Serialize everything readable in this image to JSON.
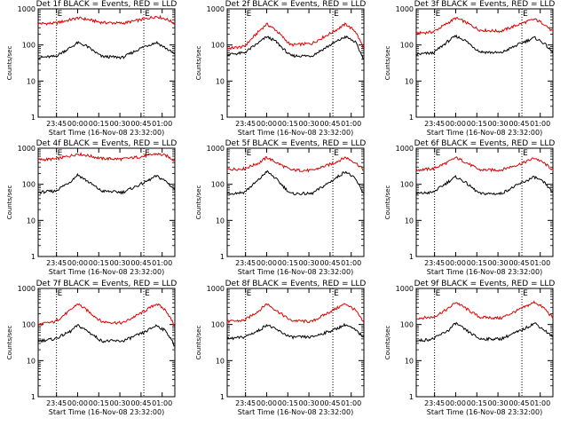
{
  "colors": {
    "events": "#000000",
    "lld": "#e00000",
    "axis": "#000000"
  },
  "shared": {
    "xlabel": "Start Time (16-Nov-08 23:32:00)",
    "ylabel": "Counts/sec",
    "x_tick_labels": [
      "23:45",
      "00:00",
      "00:15",
      "00:30",
      "00:45",
      "01:00"
    ],
    "y_tick_labels": [
      "1",
      "10",
      "100",
      "1000"
    ],
    "marker_label": "E",
    "y_scale": "log",
    "xlim_minutes": [
      0,
      97
    ],
    "ylim": [
      1,
      1000
    ],
    "x_start_time": "23:32",
    "markers_time": [
      "23:45",
      "00:47"
    ]
  },
  "chart_data": [
    {
      "type": "line",
      "title": "Det 1f BLACK = Events, RED = LLD",
      "series": [
        {
          "values_at": [
            0,
            12,
            23,
            28,
            34,
            45,
            60,
            75,
            84,
            91,
            97
          ],
          "events": [
            45,
            48,
            85,
            115,
            95,
            48,
            45,
            90,
            118,
            80,
            55
          ],
          "lld": [
            390,
            400,
            500,
            560,
            520,
            420,
            400,
            520,
            620,
            520,
            400
          ]
        }
      ]
    },
    {
      "type": "line",
      "title": "Det 2f BLACK = Events, RED = LLD",
      "series": [
        {
          "values_at": [
            0,
            12,
            23,
            28,
            34,
            45,
            60,
            75,
            84,
            91,
            97
          ],
          "events": [
            55,
            60,
            120,
            170,
            130,
            50,
            50,
            110,
            170,
            120,
            40
          ],
          "lld": [
            80,
            90,
            250,
            380,
            270,
            100,
            110,
            230,
            380,
            240,
            80
          ]
        }
      ]
    },
    {
      "type": "line",
      "title": "Det 3f BLACK = Events, RED = LLD",
      "series": [
        {
          "values_at": [
            0,
            12,
            23,
            28,
            34,
            45,
            60,
            75,
            84,
            91,
            97
          ],
          "events": [
            55,
            60,
            130,
            175,
            140,
            65,
            60,
            115,
            160,
            110,
            60
          ],
          "lld": [
            210,
            230,
            420,
            560,
            450,
            260,
            240,
            400,
            520,
            380,
            230
          ]
        }
      ]
    },
    {
      "type": "line",
      "title": "Det 4f BLACK = Events, RED = LLD",
      "series": [
        {
          "values_at": [
            0,
            12,
            23,
            28,
            34,
            45,
            60,
            75,
            84,
            91,
            97
          ],
          "events": [
            60,
            65,
            120,
            185,
            130,
            65,
            60,
            110,
            170,
            120,
            70
          ],
          "lld": [
            480,
            500,
            620,
            700,
            640,
            520,
            500,
            600,
            700,
            620,
            450
          ]
        }
      ]
    },
    {
      "type": "line",
      "title": "Det 5f BLACK = Events, RED = LLD",
      "series": [
        {
          "values_at": [
            0,
            12,
            23,
            28,
            34,
            45,
            60,
            75,
            84,
            91,
            97
          ],
          "events": [
            55,
            60,
            140,
            230,
            150,
            55,
            55,
            130,
            230,
            140,
            55
          ],
          "lld": [
            260,
            270,
            400,
            560,
            420,
            250,
            240,
            380,
            560,
            400,
            250
          ]
        }
      ]
    },
    {
      "type": "line",
      "title": "Det 6f BLACK = Events, RED = LLD",
      "series": [
        {
          "values_at": [
            0,
            12,
            23,
            28,
            34,
            45,
            60,
            75,
            84,
            91,
            97
          ],
          "events": [
            55,
            60,
            120,
            160,
            120,
            55,
            55,
            110,
            160,
            110,
            60
          ],
          "lld": [
            250,
            270,
            420,
            550,
            430,
            250,
            250,
            380,
            540,
            380,
            250
          ]
        }
      ]
    },
    {
      "type": "line",
      "title": "Det 7f BLACK = Events, RED = LLD",
      "series": [
        {
          "values_at": [
            0,
            12,
            23,
            28,
            34,
            45,
            60,
            75,
            84,
            91,
            97
          ],
          "events": [
            35,
            40,
            65,
            95,
            70,
            35,
            35,
            60,
            95,
            65,
            25
          ],
          "lld": [
            100,
            120,
            250,
            380,
            260,
            120,
            110,
            230,
            380,
            240,
            90
          ]
        }
      ]
    },
    {
      "type": "line",
      "title": "Det 8f BLACK = Events, RED = LLD",
      "series": [
        {
          "values_at": [
            0,
            12,
            23,
            28,
            34,
            45,
            60,
            75,
            84,
            91,
            97
          ],
          "events": [
            40,
            45,
            70,
            100,
            75,
            45,
            45,
            70,
            100,
            70,
            45
          ],
          "lld": [
            120,
            130,
            250,
            380,
            260,
            130,
            120,
            250,
            380,
            250,
            110
          ]
        }
      ]
    },
    {
      "type": "line",
      "title": "Det 9f BLACK = Events, RED = LLD",
      "series": [
        {
          "values_at": [
            0,
            12,
            23,
            28,
            34,
            45,
            60,
            75,
            84,
            91,
            97
          ],
          "events": [
            35,
            40,
            70,
            110,
            75,
            40,
            40,
            70,
            110,
            70,
            45
          ],
          "lld": [
            150,
            160,
            280,
            420,
            300,
            160,
            150,
            280,
            420,
            280,
            150
          ]
        }
      ]
    }
  ]
}
